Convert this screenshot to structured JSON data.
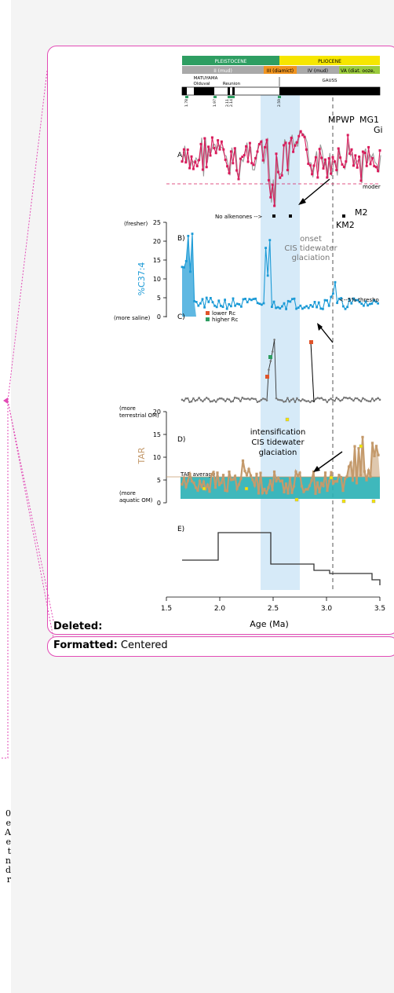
{
  "comment_balloons": {
    "deleted_label": "Deleted:",
    "formatted_label": "Formatted:",
    "formatted_value": "Centered"
  },
  "left_edge_glyphs": [
    "0",
    "e",
    "A",
    "e",
    "t",
    "n",
    "d",
    "r"
  ],
  "figure": {
    "epochs": [
      "PLEISTOCENE",
      "PLIOCENE"
    ],
    "units": [
      "II (mud)",
      "III (diamict)",
      "IV (mud)",
      "VA (diat. ooze,"
    ],
    "chrons": [
      "MATUYAMA",
      "Olduval",
      "Reunion",
      "GAUSS"
    ],
    "chron_ages": [
      "1.78",
      "1.97",
      "2.11",
      "2.14",
      "2.59"
    ],
    "event_labels": [
      "MPWP",
      "MG1",
      "Gi",
      "M2",
      "KM2"
    ],
    "panel_labels": [
      "A)",
      "B)",
      "C)",
      "D)",
      "E)"
    ],
    "panel_a": {
      "modern_label": "moder",
      "no_alkenones_label": "No alkenones -->"
    },
    "panel_b": {
      "ylabel": "%C37:4",
      "top_note": "(fresher)",
      "bottom_note": "(more saline)",
      "yticks": [
        "25",
        "20",
        "15",
        "10",
        "5",
        "0"
      ],
      "annotation": [
        "onset",
        "CIS tidewater",
        "glaciation"
      ],
      "threshold_label": "<--5% thresho"
    },
    "panel_c": {
      "legend": [
        "lower Rc",
        "higher Rc"
      ]
    },
    "panel_d": {
      "ylabel": "TAR",
      "top_note": [
        "(more",
        "terrestrial OM)"
      ],
      "bottom_note": [
        "(more",
        "aquatic OM)"
      ],
      "yticks": [
        "20",
        "15",
        "10",
        "5",
        "0"
      ],
      "average_label": "TAR average",
      "annotation": [
        "intensification",
        "CIS tidewater",
        "glaciation"
      ]
    },
    "x_axis": {
      "ticks": [
        "1.5",
        "2.0",
        "2.5",
        "3.0",
        "3.5"
      ],
      "label": "Age (Ma)"
    },
    "colors": {
      "pleistocene": "#2e9e62",
      "pliocene": "#f6e600",
      "diamict": "#f0941f",
      "ooze": "#9ccc3c",
      "mud": "#a9a9a9",
      "alkenone_series": "#d91c5c",
      "c374_series": "#1b9ad6",
      "tar_series": "#c49a6c",
      "tar_band": "#2ab0b5",
      "glaciation_band": "#d6eaf8",
      "balloon_border": "#e24bb6"
    }
  }
}
